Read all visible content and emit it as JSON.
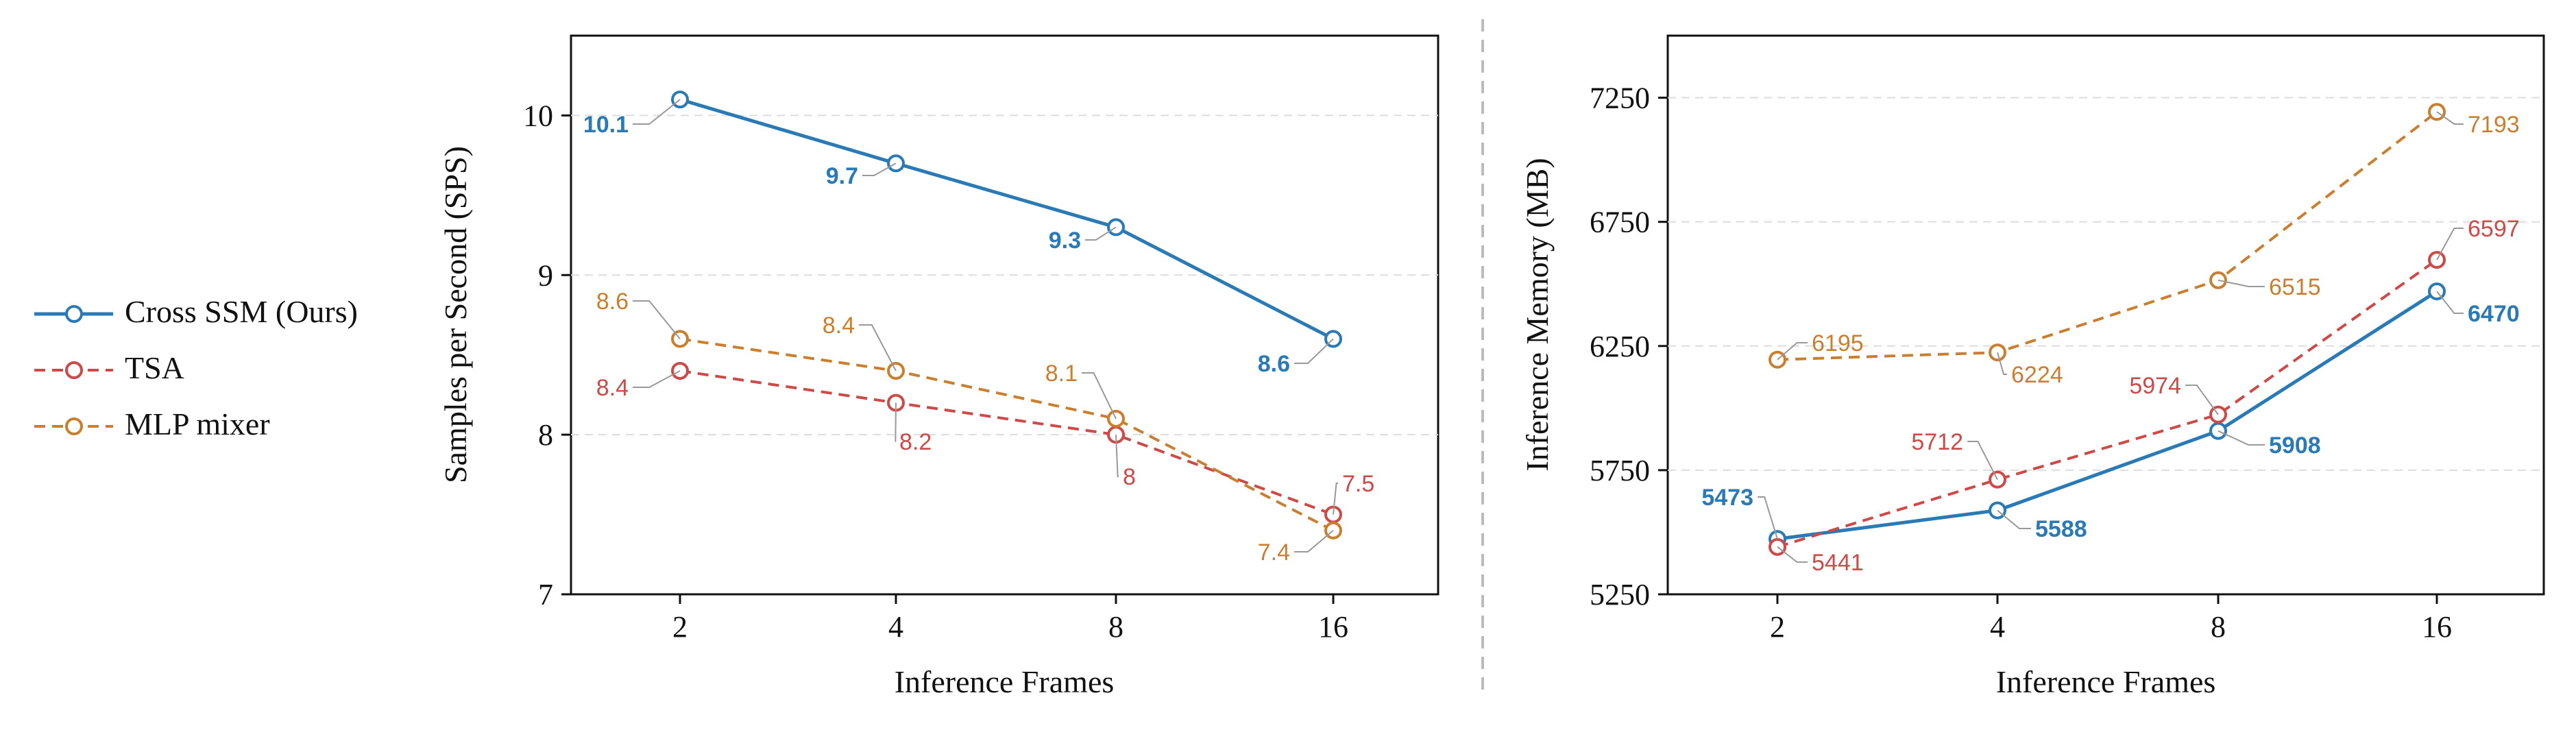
{
  "legend": {
    "items": [
      {
        "label": "Cross SSM (Ours)",
        "color": "#2a7ab5",
        "style": "solid"
      },
      {
        "label": "TSA",
        "color": "#cc4a48",
        "style": "dashed"
      },
      {
        "label": "MLP mixer",
        "color": "#c97f30",
        "style": "dashed"
      }
    ]
  },
  "chart_data": [
    {
      "type": "line",
      "xlabel": "Inference Frames",
      "ylabel": "Samples per Second (SPS)",
      "x_scale": "categorical (log2 spacing)",
      "categories": [
        "2",
        "4",
        "8",
        "16"
      ],
      "ylim": [
        7,
        10.5
      ],
      "yticks": [
        "7",
        "8",
        "9",
        "10"
      ],
      "grid": "horizontal dashed",
      "series": [
        {
          "name": "Cross SSM (Ours)",
          "color": "#2a7ab5",
          "style": "solid",
          "values": [
            10.1,
            9.7,
            9.3,
            8.6
          ],
          "labels": [
            "10.1",
            "9.7",
            "9.3",
            "8.6"
          ]
        },
        {
          "name": "TSA",
          "color": "#cc4a48",
          "style": "dashed",
          "values": [
            8.4,
            8.2,
            8.0,
            7.5
          ],
          "labels": [
            "8.4",
            "8.2",
            "8",
            "7.5"
          ]
        },
        {
          "name": "MLP mixer",
          "color": "#c97f30",
          "style": "dashed",
          "values": [
            8.6,
            8.4,
            8.1,
            7.4
          ],
          "labels": [
            "8.6",
            "8.4",
            "8.1",
            "7.4"
          ]
        }
      ]
    },
    {
      "type": "line",
      "xlabel": "Inference Frames",
      "ylabel": "Inference Memory (MB)",
      "x_scale": "categorical (log2 spacing)",
      "categories": [
        "2",
        "4",
        "8",
        "16"
      ],
      "ylim": [
        5250,
        7500
      ],
      "yticks": [
        "5250",
        "5750",
        "6250",
        "6750",
        "7250"
      ],
      "grid": "horizontal dashed",
      "series": [
        {
          "name": "Cross SSM (Ours)",
          "color": "#2a7ab5",
          "style": "solid",
          "values": [
            5473,
            5588,
            5908,
            6470
          ],
          "labels": [
            "5473",
            "5588",
            "5908",
            "6470"
          ]
        },
        {
          "name": "TSA",
          "color": "#cc4a48",
          "style": "dashed",
          "values": [
            5441,
            5712,
            5974,
            6597
          ],
          "labels": [
            "5441",
            "5712",
            "5974",
            "6597"
          ]
        },
        {
          "name": "MLP mixer",
          "color": "#c97f30",
          "style": "dashed",
          "values": [
            6195,
            6224,
            6515,
            7193
          ],
          "labels": [
            "6195",
            "6224",
            "6515",
            "7193"
          ]
        }
      ]
    }
  ]
}
